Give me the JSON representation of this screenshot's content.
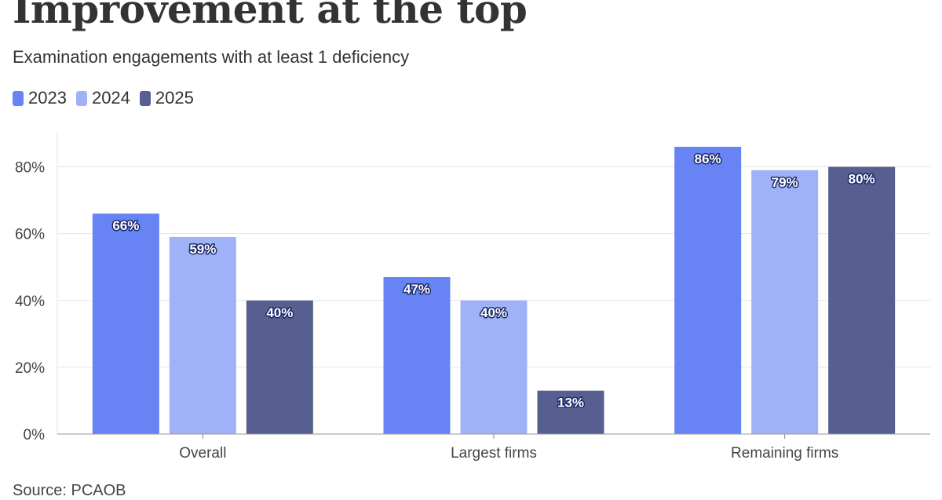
{
  "chart_data": {
    "type": "bar",
    "title": "Improvement at the top",
    "subtitle": "Examination engagements with at least 1 deficiency",
    "categories": [
      "Overall",
      "Largest firms",
      "Remaining firms"
    ],
    "series": [
      {
        "name": "2023",
        "color": "#6783f4",
        "values": [
          66,
          47,
          86
        ]
      },
      {
        "name": "2024",
        "color": "#9fb1f7",
        "values": [
          59,
          40,
          79
        ]
      },
      {
        "name": "2025",
        "color": "#565f8f",
        "values": [
          40,
          13,
          80
        ]
      }
    ],
    "data_labels": [
      [
        "66%",
        "47%",
        "86%"
      ],
      [
        "59%",
        "40%",
        "79%"
      ],
      [
        "40%",
        "13%",
        "80%"
      ]
    ],
    "yticks": [
      0,
      20,
      40,
      60,
      80
    ],
    "ytick_labels": [
      "0%",
      "20%",
      "40%",
      "60%",
      "80%"
    ],
    "ylim": [
      0,
      90
    ],
    "grid": true,
    "legend_position": "top-left",
    "source": "Source: PCAOB"
  }
}
